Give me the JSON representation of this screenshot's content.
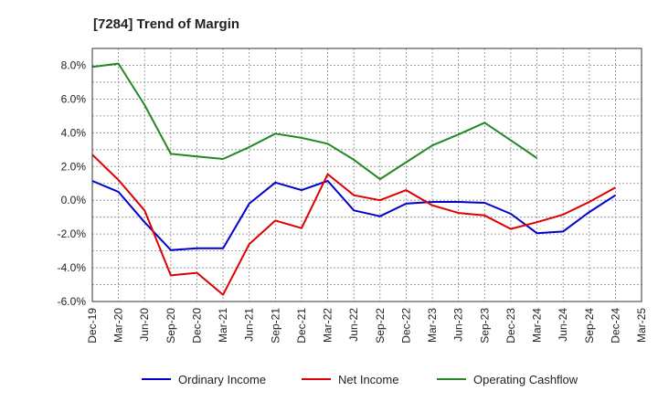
{
  "chart_data": {
    "type": "line",
    "title": "[7284]  Trend of Margin",
    "xlabel": "",
    "ylabel": "",
    "categories": [
      "Dec-19",
      "Mar-20",
      "Jun-20",
      "Sep-20",
      "Dec-20",
      "Mar-21",
      "Jun-21",
      "Sep-21",
      "Dec-21",
      "Mar-22",
      "Jun-22",
      "Sep-22",
      "Dec-22",
      "Mar-23",
      "Jun-23",
      "Sep-23",
      "Dec-23",
      "Mar-24",
      "Jun-24",
      "Sep-24",
      "Dec-24",
      "Mar-25"
    ],
    "yticks": [
      "8.0%",
      "6.0%",
      "4.0%",
      "2.0%",
      "0.0%",
      "-2.0%",
      "-4.0%",
      "-6.0%"
    ],
    "ylim": [
      -6.0,
      9.0
    ],
    "grid": true,
    "legend_position": "bottom",
    "series": [
      {
        "name": "Ordinary Income",
        "color": "#0000cc",
        "values": [
          1.15,
          0.5,
          -1.3,
          -2.95,
          -2.85,
          -2.85,
          -0.2,
          1.05,
          0.6,
          1.15,
          -0.6,
          -0.95,
          -0.2,
          -0.1,
          -0.1,
          -0.15,
          -0.8,
          -1.95,
          -1.85,
          -0.7,
          0.3,
          null
        ]
      },
      {
        "name": "Net Income",
        "color": "#dd0000",
        "values": [
          2.7,
          1.2,
          -0.6,
          -4.45,
          -4.3,
          -5.6,
          -2.6,
          -1.2,
          -1.65,
          1.55,
          0.3,
          0.0,
          0.6,
          -0.3,
          -0.75,
          -0.9,
          -1.7,
          -1.3,
          -0.85,
          -0.1,
          0.75,
          null
        ]
      },
      {
        "name": "Operating Cashflow",
        "color": "#228822",
        "values": [
          7.9,
          8.1,
          5.65,
          2.75,
          2.6,
          2.45,
          3.15,
          3.95,
          3.7,
          3.35,
          2.4,
          1.25,
          2.25,
          3.25,
          3.9,
          4.6,
          3.55,
          2.5,
          null,
          null,
          null,
          null
        ]
      }
    ]
  }
}
